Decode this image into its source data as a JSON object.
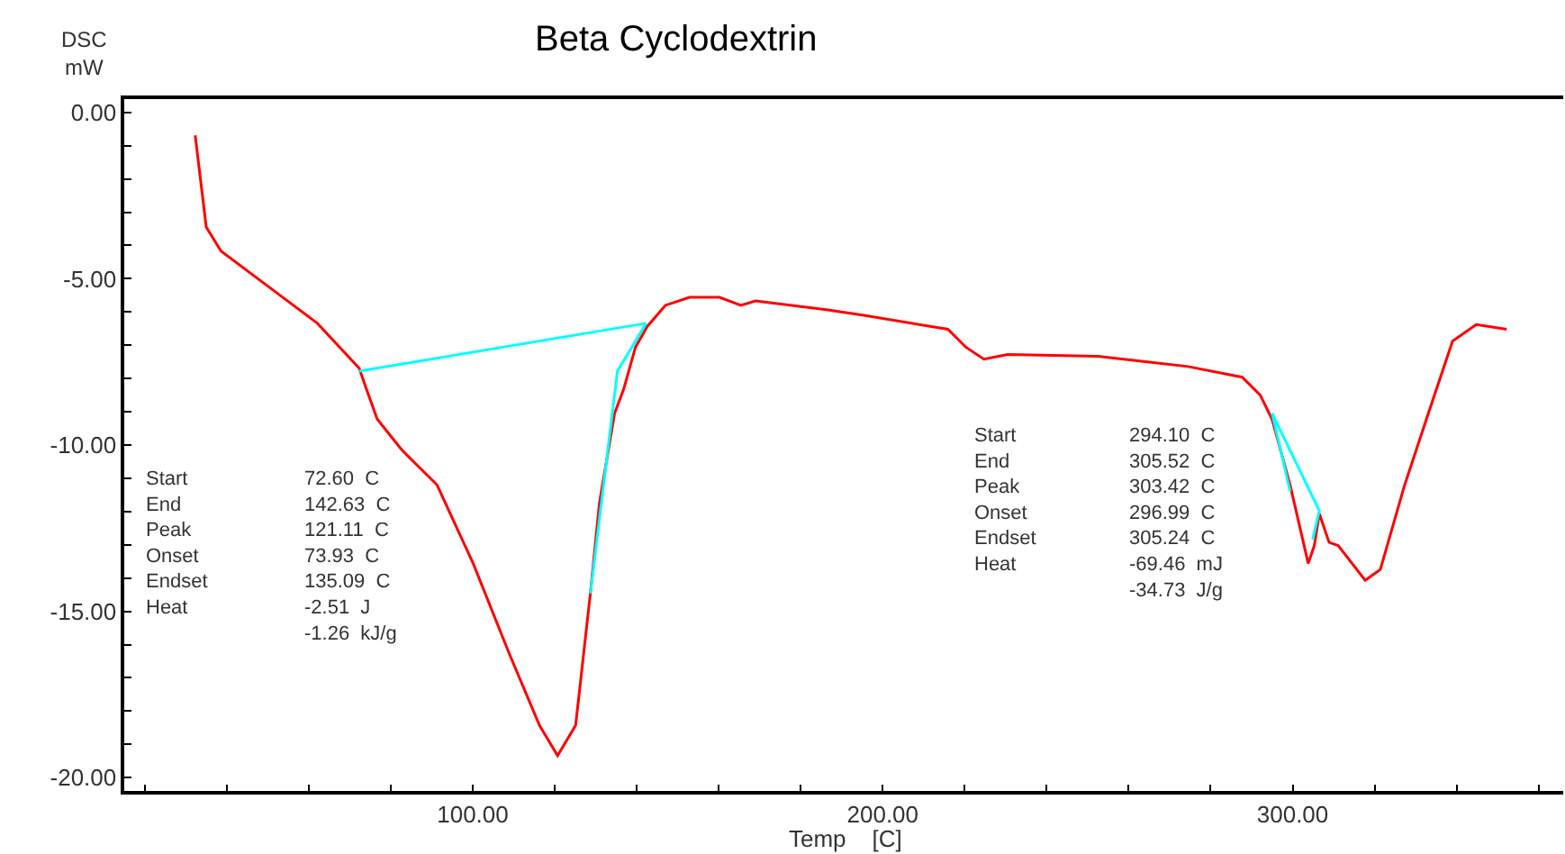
{
  "chart_data": {
    "type": "line",
    "title": "Beta Cyclodextrin",
    "xlabel": "Temp    [C]",
    "ylabel": "DSC\nmW",
    "xlim": [
      15,
      366
    ],
    "ylim": [
      -20.4,
      0.4
    ],
    "xticks": [
      {
        "value": 20,
        "label": null
      },
      {
        "value": 40,
        "label": null
      },
      {
        "value": 60,
        "label": null
      },
      {
        "value": 80,
        "label": null
      },
      {
        "value": 100,
        "label": "100.00"
      },
      {
        "value": 120,
        "label": null
      },
      {
        "value": 140,
        "label": null
      },
      {
        "value": 160,
        "label": null
      },
      {
        "value": 180,
        "label": null
      },
      {
        "value": 200,
        "label": "200.00"
      },
      {
        "value": 220,
        "label": null
      },
      {
        "value": 240,
        "label": null
      },
      {
        "value": 260,
        "label": null
      },
      {
        "value": 280,
        "label": null
      },
      {
        "value": 300,
        "label": "300.00"
      },
      {
        "value": 320,
        "label": null
      },
      {
        "value": 340,
        "label": null
      },
      {
        "value": 360,
        "label": null
      }
    ],
    "yticks": [
      {
        "value": 0,
        "label": "0.00"
      },
      {
        "value": -1,
        "label": null
      },
      {
        "value": -2,
        "label": null
      },
      {
        "value": -3,
        "label": null
      },
      {
        "value": -4,
        "label": null
      },
      {
        "value": -5,
        "label": "-5.00"
      },
      {
        "value": -6,
        "label": null
      },
      {
        "value": -7,
        "label": null
      },
      {
        "value": -8,
        "label": null
      },
      {
        "value": -9,
        "label": null
      },
      {
        "value": -10,
        "label": "-10.00"
      },
      {
        "value": -11,
        "label": null
      },
      {
        "value": -12,
        "label": null
      },
      {
        "value": -13,
        "label": null
      },
      {
        "value": -14,
        "label": null
      },
      {
        "value": -15,
        "label": "-15.00"
      },
      {
        "value": -16,
        "label": null
      },
      {
        "value": -17,
        "label": null
      },
      {
        "value": -18,
        "label": null
      },
      {
        "value": -19,
        "label": null
      },
      {
        "value": -20,
        "label": "-20.00"
      }
    ],
    "marker": "none",
    "line_style": "solid",
    "series": [
      {
        "color": "#ff0000",
        "x": [
          32.3,
          35,
          38.6,
          50.3,
          62.1,
          72.3,
          74.1,
          76.7,
          82.4,
          84.0,
          91.3,
          100.1,
          108.9,
          116.3,
          120.7,
          125.1,
          128.7,
          130.9,
          134.6,
          136.8,
          139.7,
          142.6,
          147,
          152.9,
          160.2,
          165.4,
          169,
          186.6,
          195.4,
          215.9,
          220.3,
          224.7,
          230.5,
          252.5,
          274.5,
          287.7,
          292.1,
          295,
          299.4,
          303.8,
          305.3,
          306.5,
          308.9,
          311.1,
          317.7,
          321.4,
          327.3,
          333.1,
          339,
          344.8,
          352.2
        ],
        "values": [
          -0.69,
          -3.45,
          -4.17,
          -5.25,
          -6.34,
          -7.69,
          -8.33,
          -9.22,
          -10.1,
          -10.31,
          -11.2,
          -13.56,
          -16.27,
          -18.43,
          -19.34,
          -18.43,
          -14.46,
          -11.75,
          -9.05,
          -8.33,
          -7.06,
          -6.43,
          -5.8,
          -5.56,
          -5.56,
          -5.8,
          -5.67,
          -5.94,
          -6.1,
          -6.52,
          -7.06,
          -7.42,
          -7.28,
          -7.33,
          -7.64,
          -7.96,
          -8.5,
          -9.23,
          -11.21,
          -13.56,
          -13.02,
          -12.06,
          -12.93,
          -13.02,
          -14.07,
          -13.74,
          -11.21,
          -9.05,
          -6.88,
          -6.38,
          -6.52
        ]
      },
      {
        "color": "#00ffff",
        "x": [
          72.3,
          142.3
        ],
        "values": [
          -7.78,
          -6.34
        ]
      },
      {
        "color": "#00ffff",
        "x": [
          142.3,
          135.3,
          128.7
        ],
        "values": [
          -6.34,
          -7.78,
          -14.46
        ]
      },
      {
        "color": "#00ffff",
        "x": [
          295,
          306.5
        ],
        "values": [
          -9.05,
          -11.97
        ]
      },
      {
        "color": "#00ffff",
        "x": [
          295,
          299.4
        ],
        "values": [
          -9.05,
          -11.39
        ]
      },
      {
        "color": "#00ffff",
        "x": [
          304.9,
          306.5
        ],
        "values": [
          -12.84,
          -11.97
        ]
      }
    ],
    "annotations": [
      "Start\nEnd\nPeak\nOnset\nEndset\nHeat\n ",
      "72.60  C\n142.63  C\n121.11  C\n73.93  C\n135.09  C\n-2.51  J\n-1.26  kJ/g",
      "Start\nEnd\nPeak\nOnset\nEndset\nHeat\n ",
      "294.10  C\n305.52  C\n303.42  C\n296.99  C\n305.24  C\n-69.46  mJ\n-34.73  J/g"
    ]
  }
}
